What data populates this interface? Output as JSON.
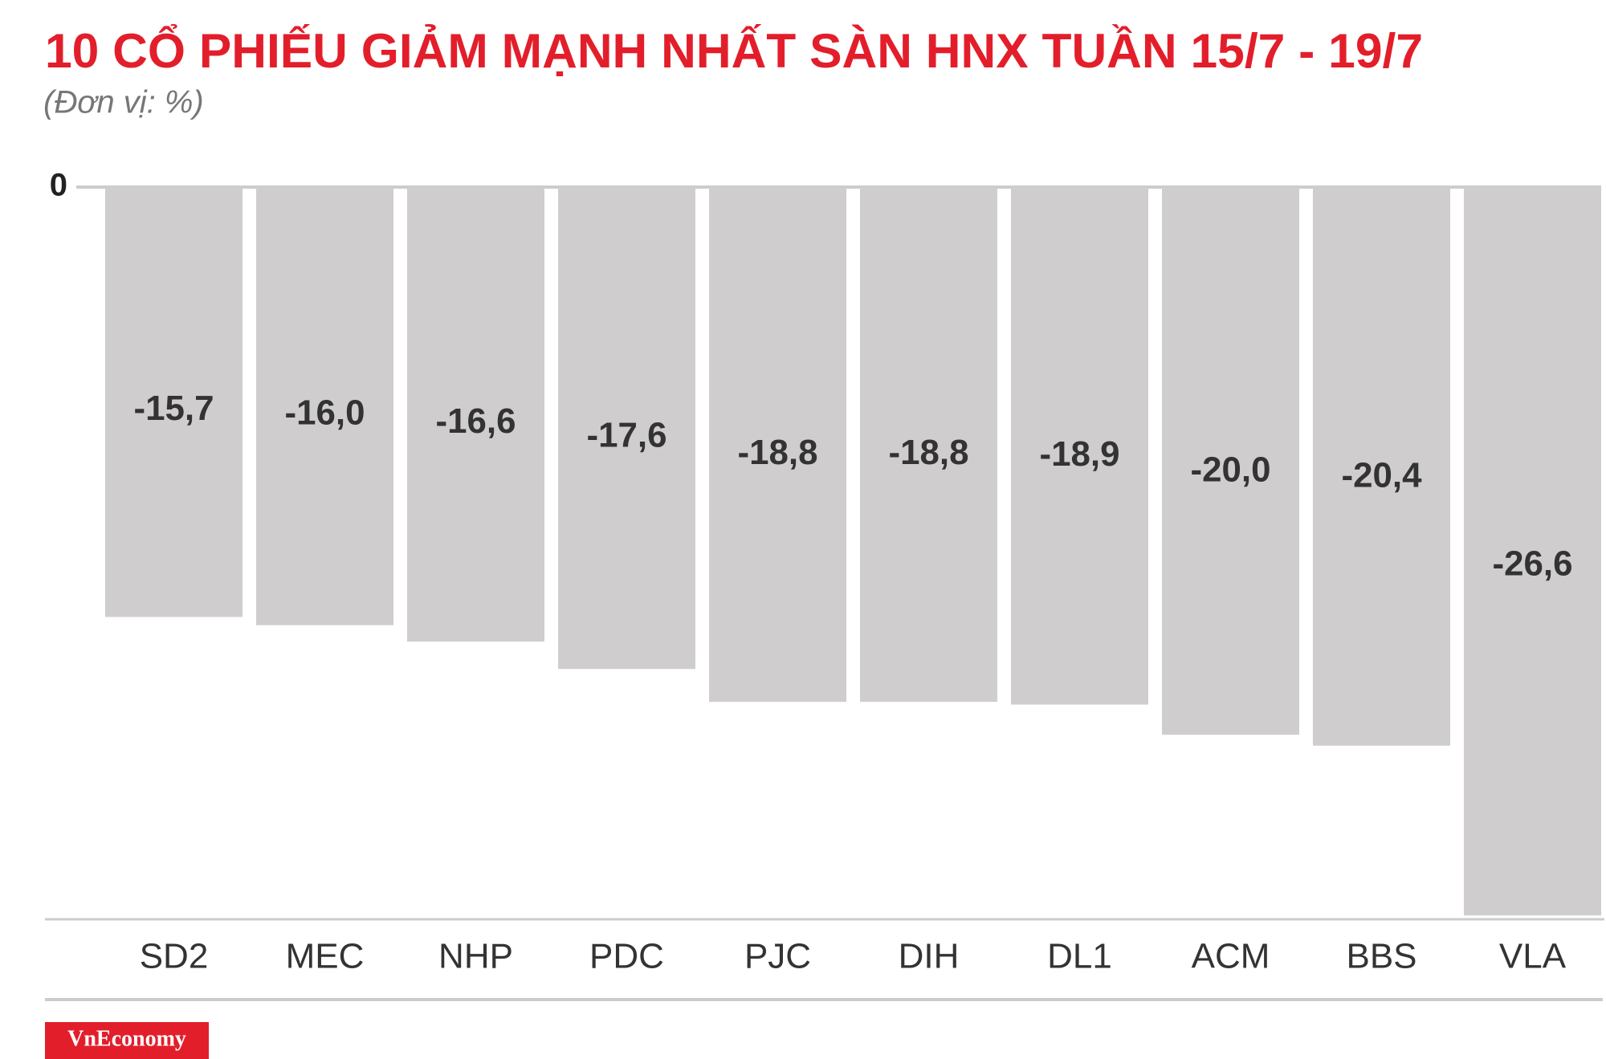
{
  "chart_data": {
    "type": "bar",
    "title": "10 CỔ PHIẾU GIẢM MẠNH NHẤT SÀN HNX TUẦN 15/7 - 19/7",
    "subtitle": "(Đơn vị: %)",
    "categories": [
      "SD2",
      "MEC",
      "NHP",
      "PDC",
      "PJC",
      "DIH",
      "DL1",
      "ACM",
      "BBS",
      "VLA"
    ],
    "values": [
      -15.7,
      -16.0,
      -16.6,
      -17.6,
      -18.8,
      -18.8,
      -18.9,
      -20.0,
      -20.4,
      -26.6
    ],
    "value_labels": [
      "-15,7",
      "-16,0",
      "-16,6",
      "-17,6",
      "-18,8",
      "-18,8",
      "-18,9",
      "-20,0",
      "-20,4",
      "-26,6"
    ],
    "color": "#cfcdce",
    "ylim": [
      -26.8,
      0
    ],
    "yticks": [
      0
    ],
    "source": "VnEconomy"
  }
}
